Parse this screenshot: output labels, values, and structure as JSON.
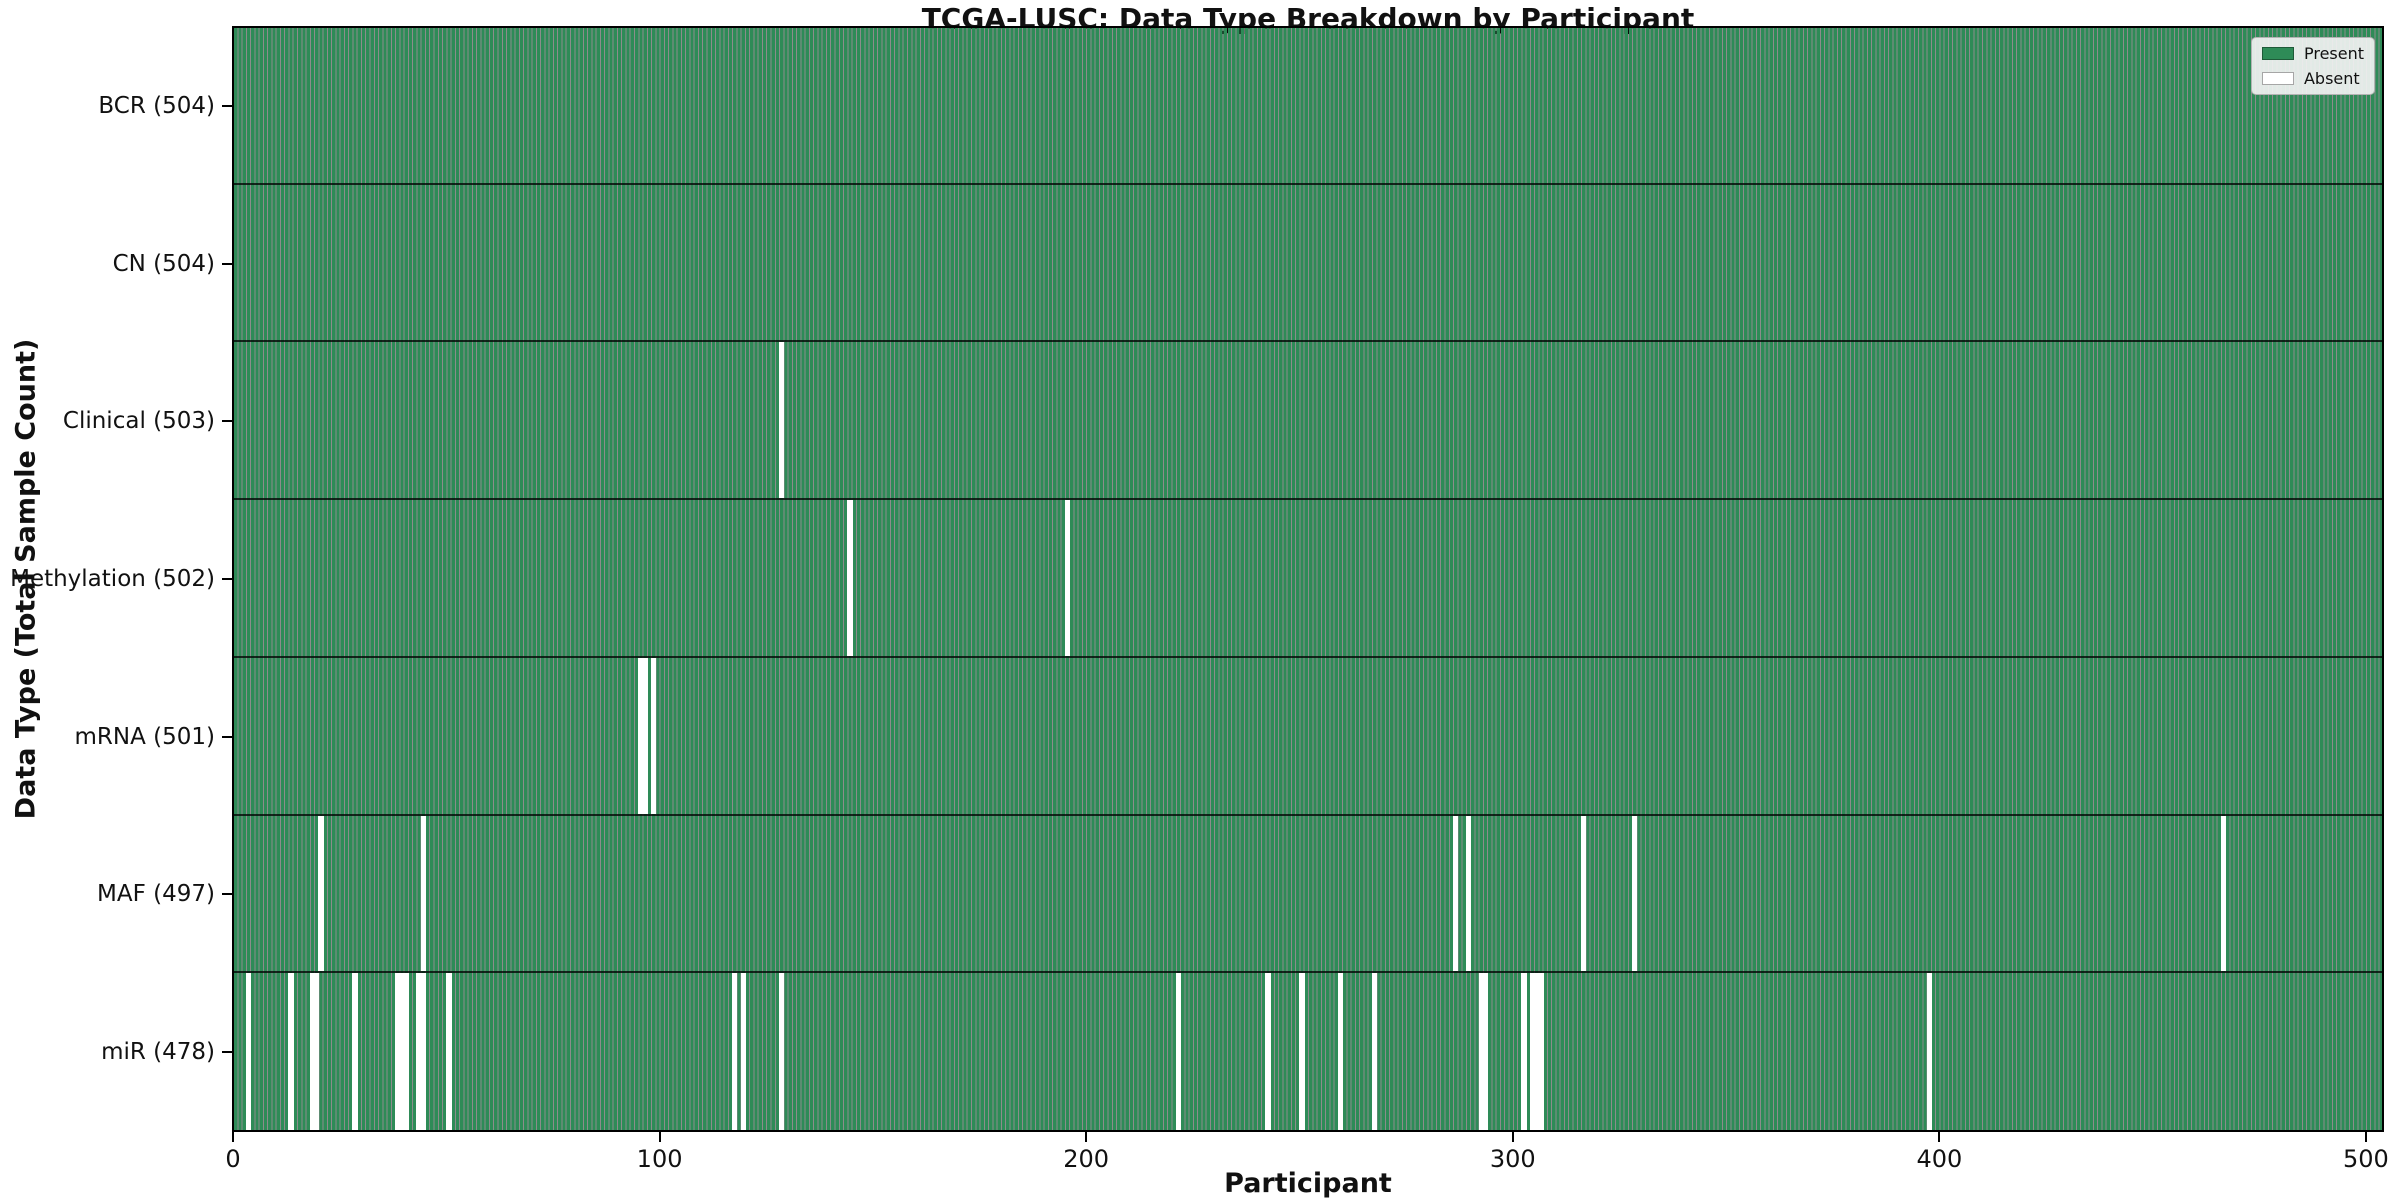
{
  "chart_data": {
    "type": "heatmap",
    "title": "TCGA-LUSC: Data Type Breakdown by Participant",
    "xlabel": "Participant",
    "ylabel": "Data Type (Total Sample Count)",
    "x_range": [
      0,
      504
    ],
    "n_participants": 504,
    "x_ticks": [
      0,
      100,
      200,
      300,
      400,
      500
    ],
    "grid": false,
    "legend_position": "upper right",
    "legend": [
      {
        "label": "Present",
        "type": "present"
      },
      {
        "label": "Absent",
        "type": "absent"
      }
    ],
    "colors": {
      "present": "#2e8b57",
      "absent": "#ffffff",
      "bar_edge": "rgba(0,0,0,0.45)",
      "frame": "#000000",
      "background": "#ffffff"
    },
    "rows": [
      {
        "id": "bcr",
        "label": "BCR (504)",
        "data_type": "BCR",
        "present_count": 504,
        "absent_participants": []
      },
      {
        "id": "cn",
        "label": "CN (504)",
        "data_type": "CN",
        "present_count": 504,
        "absent_participants": []
      },
      {
        "id": "clinical",
        "label": "Clinical (503)",
        "data_type": "Clinical",
        "present_count": 503,
        "absent_participants": [
          128
        ]
      },
      {
        "id": "methylation",
        "label": "Methylation (502)",
        "data_type": "Methylation",
        "present_count": 502,
        "absent_participants": [
          144,
          195
        ]
      },
      {
        "id": "mrna",
        "label": "mRNA (501)",
        "data_type": "mRNA",
        "present_count": 501,
        "absent_participants": [
          95,
          96,
          98
        ]
      },
      {
        "id": "maf",
        "label": "MAF (497)",
        "data_type": "MAF",
        "present_count": 497,
        "absent_participants": [
          20,
          44,
          286,
          289,
          316,
          328,
          466
        ]
      },
      {
        "id": "mir",
        "label": "miR (478)",
        "data_type": "miR",
        "present_count": 478,
        "absent_participants": [
          3,
          13,
          18,
          19,
          28,
          38,
          39,
          40,
          43,
          44,
          50,
          117,
          119,
          128,
          221,
          242,
          250,
          259,
          267,
          292,
          293,
          302,
          304,
          305,
          306,
          397
        ]
      }
    ]
  }
}
